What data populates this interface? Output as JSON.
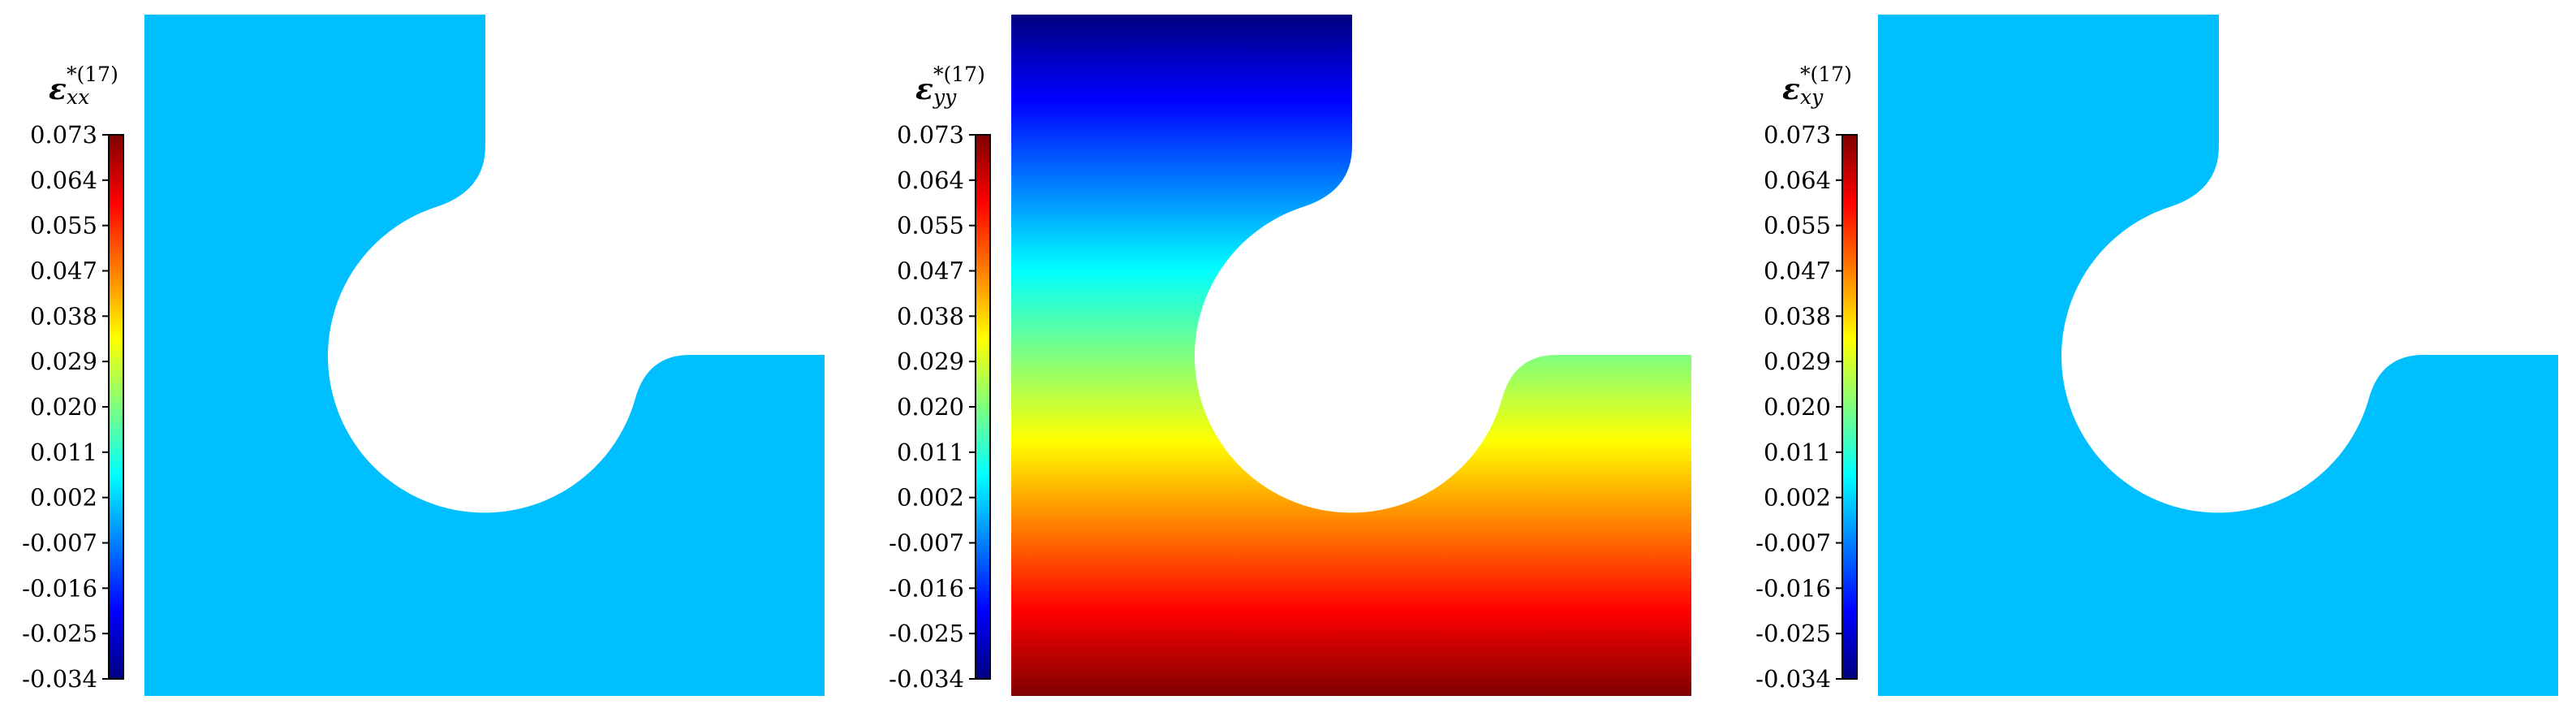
{
  "colormap": {
    "name": "jet",
    "stops": [
      "#00007f",
      "#0000ff",
      "#007fff",
      "#00ffff",
      "#7fff7f",
      "#ffff00",
      "#ff7f00",
      "#ff0000",
      "#7f0000"
    ]
  },
  "colorbar": {
    "ticks": [
      "0.073",
      "0.064",
      "0.055",
      "0.047",
      "0.038",
      "0.029",
      "0.020",
      "0.011",
      "0.002",
      "-0.007",
      "-0.016",
      "-0.025",
      "-0.034"
    ],
    "min": -0.034,
    "max": 0.073
  },
  "panels": [
    {
      "id": "exx",
      "symbol": "ε",
      "subscript": "xx",
      "superscript": "*(17)",
      "fill_type": "uniform",
      "uniform_color": "#00bfff"
    },
    {
      "id": "eyy",
      "symbol": "ε",
      "subscript": "yy",
      "superscript": "*(17)",
      "fill_type": "gradient",
      "gradient_stops": [
        "#00007f",
        "#0000ff",
        "#007fff",
        "#00ffff",
        "#7fff7f",
        "#ffff00",
        "#ff7f00",
        "#ff0000",
        "#7f0000"
      ]
    },
    {
      "id": "exy",
      "symbol": "ε",
      "subscript": "xy",
      "superscript": "*(17)",
      "fill_type": "uniform",
      "uniform_color": "#00bfff"
    }
  ]
}
